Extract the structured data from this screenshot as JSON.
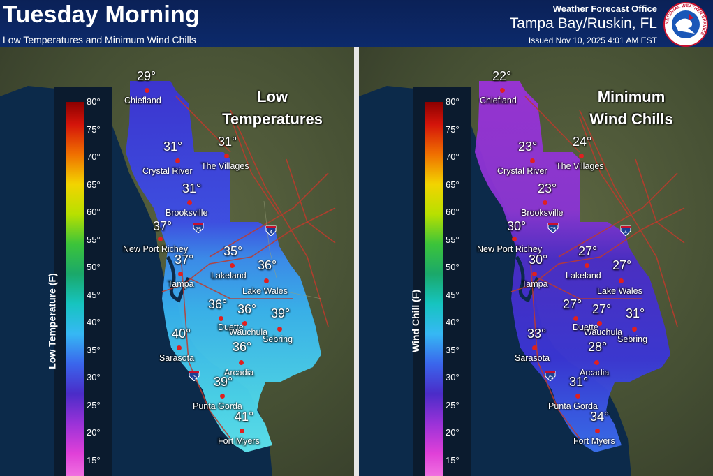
{
  "header": {
    "title": "Tuesday Morning",
    "subtitle": "Low Temperatures and Minimum Wind Chills",
    "office_label": "Weather Forecast Office",
    "office_name": "Tampa Bay/Ruskin, FL",
    "issued": "Issued Nov 10, 2025 4:01 AM EST",
    "logo_text": "NATIONAL WEATHER SERVICE"
  },
  "scale_ticks": [
    "80°",
    "75°",
    "70°",
    "65°",
    "60°",
    "55°",
    "50°",
    "45°",
    "40°",
    "35°",
    "30°",
    "25°",
    "20°",
    "15°"
  ],
  "shields": {
    "i75": "75",
    "i4": "4"
  },
  "panels": [
    {
      "title_line1": "Low",
      "title_line2": "Temperatures",
      "axis_label": "Low Temperature (F)",
      "cities": [
        {
          "name": "Chiefland",
          "value": "29°"
        },
        {
          "name": "Crystal River",
          "value": "31°"
        },
        {
          "name": "The Villages",
          "value": "31°"
        },
        {
          "name": "Brooksville",
          "value": "31°"
        },
        {
          "name": "New Port Richey",
          "value": "37°"
        },
        {
          "name": "Tampa",
          "value": "37°"
        },
        {
          "name": "Lakeland",
          "value": "35°"
        },
        {
          "name": "Lake Wales",
          "value": "36°"
        },
        {
          "name": "Duette",
          "value": "36°"
        },
        {
          "name": "Wauchula",
          "value": "36°"
        },
        {
          "name": "Sebring",
          "value": "39°"
        },
        {
          "name": "Sarasota",
          "value": "40°"
        },
        {
          "name": "Arcadia",
          "value": "36°"
        },
        {
          "name": "Punta Gorda",
          "value": "39°"
        },
        {
          "name": "Fort Myers",
          "value": "41°"
        }
      ]
    },
    {
      "title_line1": "Minimum",
      "title_line2": "Wind Chills",
      "axis_label": "Wind Chill (F)",
      "cities": [
        {
          "name": "Chiefland",
          "value": "22°"
        },
        {
          "name": "Crystal River",
          "value": "23°"
        },
        {
          "name": "The Villages",
          "value": "24°"
        },
        {
          "name": "Brooksville",
          "value": "23°"
        },
        {
          "name": "New Port Richey",
          "value": "30°"
        },
        {
          "name": "Tampa",
          "value": "30°"
        },
        {
          "name": "Lakeland",
          "value": "27°"
        },
        {
          "name": "Lake Wales",
          "value": "27°"
        },
        {
          "name": "Duette",
          "value": "27°"
        },
        {
          "name": "Wauchula",
          "value": "27°"
        },
        {
          "name": "Sebring",
          "value": "31°"
        },
        {
          "name": "Sarasota",
          "value": "33°"
        },
        {
          "name": "Arcadia",
          "value": "28°"
        },
        {
          "name": "Punta Gorda",
          "value": "31°"
        },
        {
          "name": "Fort Myers",
          "value": "34°"
        }
      ]
    }
  ]
}
